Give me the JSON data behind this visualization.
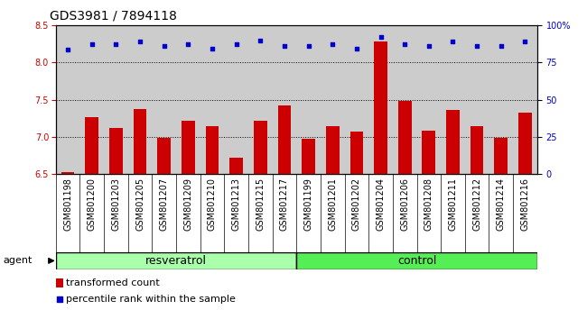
{
  "title": "GDS3981 / 7894118",
  "categories": [
    "GSM801198",
    "GSM801200",
    "GSM801203",
    "GSM801205",
    "GSM801207",
    "GSM801209",
    "GSM801210",
    "GSM801213",
    "GSM801215",
    "GSM801217",
    "GSM801199",
    "GSM801201",
    "GSM801202",
    "GSM801204",
    "GSM801206",
    "GSM801208",
    "GSM801211",
    "GSM801212",
    "GSM801214",
    "GSM801216"
  ],
  "bar_values": [
    6.52,
    7.27,
    7.12,
    7.38,
    6.98,
    7.22,
    7.14,
    6.72,
    7.22,
    7.42,
    6.97,
    7.14,
    7.07,
    8.28,
    7.48,
    7.08,
    7.36,
    7.14,
    6.99,
    7.33
  ],
  "percentile_values": [
    8.18,
    8.25,
    8.25,
    8.28,
    8.22,
    8.25,
    8.19,
    8.25,
    8.3,
    8.22,
    8.22,
    8.25,
    8.19,
    8.34,
    8.25,
    8.22,
    8.28,
    8.22,
    8.22,
    8.28
  ],
  "bar_color": "#cc0000",
  "percentile_color": "#0000cc",
  "ylim_left": [
    6.5,
    8.5
  ],
  "ylim_right": [
    0,
    100
  ],
  "yticks_left": [
    6.5,
    7.0,
    7.5,
    8.0,
    8.5
  ],
  "yticks_right": [
    0,
    25,
    50,
    75,
    100
  ],
  "ytick_labels_right": [
    "0",
    "25",
    "50",
    "75",
    "100%"
  ],
  "group1_label": "resveratrol",
  "group2_label": "control",
  "group1_count": 10,
  "group2_count": 10,
  "agent_label": "agent",
  "legend_bar_label": "transformed count",
  "legend_dot_label": "percentile rank within the sample",
  "bg_color": "#cccccc",
  "resveratrol_color": "#aaffaa",
  "control_color": "#55ee55",
  "title_fontsize": 10,
  "tick_fontsize": 7,
  "label_fontsize": 8,
  "group_label_fontsize": 9
}
